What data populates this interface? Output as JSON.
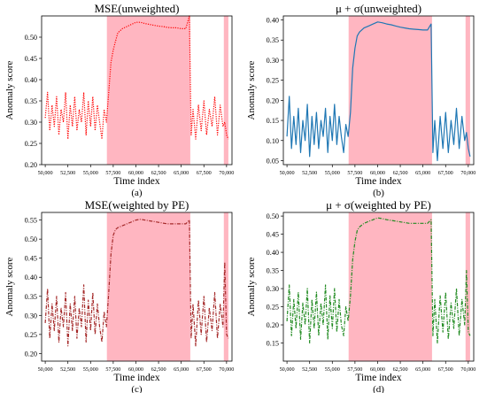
{
  "chart_data": [
    {
      "type": "line",
      "title": "MSE(unweighted)",
      "xlabel": "Time index",
      "ylabel": "Anomaly score",
      "caption": "(a)",
      "xlim": [
        49600,
        70600
      ],
      "ylim": [
        0.2,
        0.55
      ],
      "xticks": [
        50000,
        52500,
        55000,
        57500,
        60000,
        62500,
        65000,
        67500,
        70000
      ],
      "xtick_labels": [
        "50,000",
        "52,500",
        "55,000",
        "57,500",
        "60,000",
        "62,500",
        "65,000",
        "67,500",
        "70,000"
      ],
      "yticks": [
        0.2,
        0.25,
        0.3,
        0.35,
        0.4,
        0.45,
        0.5
      ],
      "ytick_labels": [
        "0.20",
        "0.25",
        "0.30",
        "0.35",
        "0.40",
        "0.45",
        "0.50"
      ],
      "anomaly_regions": [
        [
          56800,
          66000
        ],
        [
          69700,
          70200
        ]
      ],
      "series": [
        {
          "color": "#ff0000",
          "style": "dotted",
          "x": [
            50000,
            50250,
            50500,
            50750,
            51000,
            51250,
            51500,
            51750,
            52000,
            52250,
            52500,
            52750,
            53000,
            53250,
            53500,
            53750,
            54000,
            54250,
            54500,
            54750,
            55000,
            55250,
            55500,
            55750,
            56000,
            56250,
            56500,
            56750,
            57000,
            57250,
            57500,
            57750,
            58000,
            58500,
            59000,
            59500,
            60000,
            60500,
            61000,
            61500,
            62000,
            62500,
            63000,
            63500,
            64000,
            64500,
            65000,
            65500,
            65900,
            66100,
            66300,
            66600,
            66900,
            67200,
            67500,
            67800,
            68100,
            68400,
            68700,
            69000,
            69300,
            69600,
            69800,
            70000,
            70200
          ],
          "y": [
            0.31,
            0.37,
            0.28,
            0.34,
            0.29,
            0.36,
            0.27,
            0.33,
            0.3,
            0.37,
            0.26,
            0.34,
            0.29,
            0.36,
            0.28,
            0.33,
            0.3,
            0.37,
            0.27,
            0.35,
            0.29,
            0.36,
            0.28,
            0.34,
            0.3,
            0.26,
            0.33,
            0.3,
            0.37,
            0.44,
            0.47,
            0.49,
            0.51,
            0.52,
            0.525,
            0.53,
            0.535,
            0.535,
            0.532,
            0.53,
            0.528,
            0.526,
            0.525,
            0.523,
            0.522,
            0.522,
            0.52,
            0.52,
            0.55,
            0.27,
            0.33,
            0.26,
            0.34,
            0.28,
            0.35,
            0.27,
            0.33,
            0.29,
            0.36,
            0.27,
            0.34,
            0.29,
            0.3,
            0.27,
            0.26
          ]
        }
      ]
    },
    {
      "type": "line",
      "title": "μ + σ(unweighted)",
      "xlabel": "Time index",
      "ylabel": "Anomaly score",
      "caption": "(b)",
      "xlim": [
        49600,
        70600
      ],
      "ylim": [
        0.04,
        0.41
      ],
      "xticks": [
        50000,
        52500,
        55000,
        57500,
        60000,
        62500,
        65000,
        67500,
        70000
      ],
      "xtick_labels": [
        "50,000",
        "52,500",
        "55,000",
        "57,500",
        "60,000",
        "62,500",
        "65,000",
        "67,500",
        "70,000"
      ],
      "yticks": [
        0.05,
        0.1,
        0.15,
        0.2,
        0.25,
        0.3,
        0.35,
        0.4
      ],
      "ytick_labels": [
        "0.05",
        "0.10",
        "0.15",
        "0.20",
        "0.25",
        "0.30",
        "0.35",
        "0.40"
      ],
      "anomaly_regions": [
        [
          56800,
          66000
        ],
        [
          69700,
          70200
        ]
      ],
      "series": [
        {
          "color": "#1f77b4",
          "style": "solid",
          "x": [
            50000,
            50250,
            50500,
            50750,
            51000,
            51250,
            51500,
            51750,
            52000,
            52250,
            52500,
            52750,
            53000,
            53250,
            53500,
            53750,
            54000,
            54250,
            54500,
            54750,
            55000,
            55250,
            55500,
            55750,
            56000,
            56250,
            56500,
            56750,
            57000,
            57250,
            57500,
            57750,
            58000,
            58500,
            59000,
            59500,
            60000,
            60500,
            61000,
            61500,
            62000,
            62500,
            63000,
            63500,
            64000,
            64500,
            65000,
            65500,
            65900,
            66100,
            66300,
            66600,
            66900,
            67200,
            67500,
            67800,
            68100,
            68400,
            68700,
            69000,
            69300,
            69600,
            69800,
            70000,
            70200
          ],
          "y": [
            0.11,
            0.21,
            0.08,
            0.16,
            0.09,
            0.18,
            0.07,
            0.15,
            0.1,
            0.19,
            0.06,
            0.16,
            0.09,
            0.17,
            0.08,
            0.15,
            0.11,
            0.18,
            0.07,
            0.16,
            0.1,
            0.19,
            0.09,
            0.16,
            0.11,
            0.07,
            0.14,
            0.11,
            0.17,
            0.28,
            0.33,
            0.36,
            0.37,
            0.38,
            0.385,
            0.39,
            0.395,
            0.393,
            0.39,
            0.388,
            0.385,
            0.382,
            0.38,
            0.378,
            0.377,
            0.376,
            0.375,
            0.375,
            0.39,
            0.07,
            0.15,
            0.05,
            0.16,
            0.08,
            0.17,
            0.07,
            0.15,
            0.09,
            0.18,
            0.08,
            0.16,
            0.1,
            0.12,
            0.08,
            0.06
          ]
        }
      ]
    },
    {
      "type": "line",
      "title": "MSE(weighted by PE)",
      "xlabel": "Time index",
      "ylabel": "Anomaly score",
      "caption": "(c)",
      "xlim": [
        49600,
        70600
      ],
      "ylim": [
        0.18,
        0.57
      ],
      "xticks": [
        50000,
        52500,
        55000,
        57500,
        60000,
        62500,
        65000,
        67500,
        70000
      ],
      "xtick_labels": [
        "50,000",
        "52,500",
        "55,000",
        "57,500",
        "60,000",
        "62,500",
        "65,000",
        "67,500",
        "70,000"
      ],
      "yticks": [
        0.2,
        0.25,
        0.3,
        0.35,
        0.4,
        0.45,
        0.5,
        0.55
      ],
      "ytick_labels": [
        "0.20",
        "0.25",
        "0.30",
        "0.35",
        "0.40",
        "0.45",
        "0.50",
        "0.55"
      ],
      "anomaly_regions": [
        [
          56800,
          66000
        ],
        [
          69700,
          70200
        ]
      ],
      "series": [
        {
          "color": "#a52a2a",
          "style": "dashdot",
          "x": [
            50000,
            50250,
            50500,
            50750,
            51000,
            51250,
            51500,
            51750,
            52000,
            52250,
            52500,
            52750,
            53000,
            53250,
            53500,
            53750,
            54000,
            54250,
            54500,
            54750,
            55000,
            55250,
            55500,
            55750,
            56000,
            56250,
            56500,
            56750,
            57000,
            57250,
            57500,
            57750,
            58000,
            58500,
            59000,
            59500,
            60000,
            60500,
            61000,
            61500,
            62000,
            62500,
            63000,
            63500,
            64000,
            64500,
            65000,
            65500,
            65900,
            66100,
            66300,
            66600,
            66900,
            67200,
            67500,
            67800,
            68100,
            68400,
            68700,
            69000,
            69300,
            69600,
            69800,
            70000,
            70200
          ],
          "y": [
            0.28,
            0.37,
            0.24,
            0.33,
            0.26,
            0.35,
            0.23,
            0.32,
            0.27,
            0.36,
            0.22,
            0.33,
            0.26,
            0.35,
            0.24,
            0.32,
            0.27,
            0.38,
            0.23,
            0.34,
            0.26,
            0.36,
            0.25,
            0.33,
            0.27,
            0.23,
            0.31,
            0.27,
            0.36,
            0.46,
            0.51,
            0.525,
            0.53,
            0.535,
            0.54,
            0.545,
            0.55,
            0.552,
            0.55,
            0.548,
            0.546,
            0.544,
            0.542,
            0.54,
            0.54,
            0.54,
            0.54,
            0.54,
            0.55,
            0.24,
            0.33,
            0.22,
            0.34,
            0.25,
            0.35,
            0.23,
            0.32,
            0.26,
            0.36,
            0.24,
            0.33,
            0.27,
            0.44,
            0.25,
            0.24
          ]
        }
      ]
    },
    {
      "type": "line",
      "title": "μ + σ(weighted by PE)",
      "xlabel": "Time index",
      "ylabel": "Anomaly score",
      "caption": "(d)",
      "xlim": [
        49600,
        70600
      ],
      "ylim": [
        0.1,
        0.51
      ],
      "xticks": [
        50000,
        52500,
        55000,
        57500,
        60000,
        62500,
        65000,
        67500,
        70000
      ],
      "xtick_labels": [
        "50,000",
        "52,500",
        "55,000",
        "57,500",
        "60,000",
        "62,500",
        "65,000",
        "67,500",
        "70,000"
      ],
      "yticks": [
        0.15,
        0.2,
        0.25,
        0.3,
        0.35,
        0.4,
        0.45,
        0.5
      ],
      "ytick_labels": [
        "0.15",
        "0.20",
        "0.25",
        "0.30",
        "0.35",
        "0.40",
        "0.45",
        "0.50"
      ],
      "anomaly_regions": [
        [
          56800,
          66000
        ],
        [
          69700,
          70200
        ]
      ],
      "series": [
        {
          "color": "#228b22",
          "style": "dashdot",
          "x": [
            50000,
            50250,
            50500,
            50750,
            51000,
            51250,
            51500,
            51750,
            52000,
            52250,
            52500,
            52750,
            53000,
            53250,
            53500,
            53750,
            54000,
            54250,
            54500,
            54750,
            55000,
            55250,
            55500,
            55750,
            56000,
            56250,
            56500,
            56750,
            57000,
            57250,
            57500,
            57750,
            58000,
            58500,
            59000,
            59500,
            60000,
            60500,
            61000,
            61500,
            62000,
            62500,
            63000,
            63500,
            64000,
            64500,
            65000,
            65500,
            65900,
            66100,
            66300,
            66600,
            66900,
            67200,
            67500,
            67800,
            68100,
            68400,
            68700,
            69000,
            69300,
            69600,
            69800,
            70000,
            70200
          ],
          "y": [
            0.21,
            0.31,
            0.17,
            0.27,
            0.19,
            0.29,
            0.16,
            0.26,
            0.2,
            0.3,
            0.15,
            0.27,
            0.19,
            0.29,
            0.17,
            0.26,
            0.2,
            0.31,
            0.16,
            0.28,
            0.19,
            0.3,
            0.18,
            0.27,
            0.2,
            0.17,
            0.25,
            0.21,
            0.28,
            0.38,
            0.43,
            0.46,
            0.47,
            0.48,
            0.485,
            0.49,
            0.495,
            0.493,
            0.49,
            0.488,
            0.486,
            0.484,
            0.482,
            0.48,
            0.48,
            0.48,
            0.48,
            0.48,
            0.49,
            0.17,
            0.27,
            0.15,
            0.28,
            0.18,
            0.29,
            0.16,
            0.26,
            0.19,
            0.3,
            0.17,
            0.27,
            0.2,
            0.35,
            0.18,
            0.17
          ]
        }
      ]
    }
  ],
  "colors": {
    "anomaly_fill": "#ffb6c1",
    "axis": "#000000"
  }
}
